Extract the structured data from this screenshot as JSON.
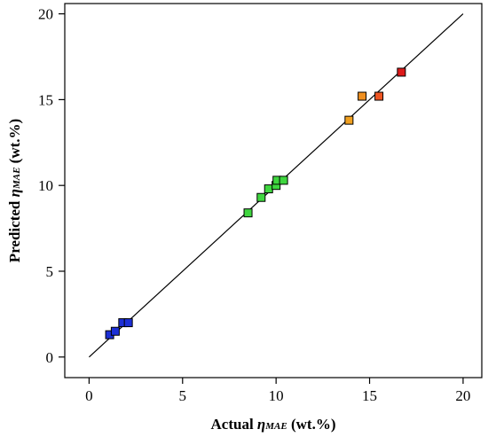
{
  "chart_data": {
    "type": "scatter",
    "title": "",
    "xlabel": {
      "prefix": "Actual ",
      "symbol": "η",
      "subscript": "MAE",
      "suffix": " (wt.%)"
    },
    "ylabel": {
      "prefix": "Predicted ",
      "symbol": "η",
      "subscript": "MAE",
      "suffix": " (wt.%)"
    },
    "xlim": [
      -1.3,
      21.0
    ],
    "ylim": [
      -1.2,
      20.6
    ],
    "xticks": [
      0,
      5,
      10,
      15,
      20
    ],
    "yticks": [
      0,
      5,
      10,
      15,
      20
    ],
    "xtick_labels": [
      "0",
      "5",
      "10",
      "15",
      "20"
    ],
    "ytick_labels": [
      "0",
      "5",
      "10",
      "15",
      "20"
    ],
    "grid": false,
    "legend": "none",
    "reference_line": {
      "type": "y=x",
      "from": [
        0,
        0
      ],
      "to": [
        20,
        20
      ]
    },
    "points": [
      {
        "x": 1.1,
        "y": 1.3,
        "color": "#1c2fd6"
      },
      {
        "x": 1.4,
        "y": 1.5,
        "color": "#1c2fd6"
      },
      {
        "x": 1.8,
        "y": 2.0,
        "color": "#1c2fd6"
      },
      {
        "x": 2.1,
        "y": 2.0,
        "color": "#1c2fd6"
      },
      {
        "x": 8.5,
        "y": 8.4,
        "color": "#3fd63f"
      },
      {
        "x": 9.2,
        "y": 9.3,
        "color": "#3fd63f"
      },
      {
        "x": 9.6,
        "y": 9.8,
        "color": "#3fd63f"
      },
      {
        "x": 10.0,
        "y": 10.0,
        "color": "#3fd63f"
      },
      {
        "x": 10.05,
        "y": 10.3,
        "color": "#3fd63f"
      },
      {
        "x": 10.4,
        "y": 10.3,
        "color": "#3fd63f"
      },
      {
        "x": 13.9,
        "y": 13.8,
        "color": "#f0a020"
      },
      {
        "x": 14.6,
        "y": 15.2,
        "color": "#f09020"
      },
      {
        "x": 15.5,
        "y": 15.2,
        "color": "#ee5522"
      },
      {
        "x": 16.7,
        "y": 16.6,
        "color": "#dd1a1a"
      }
    ]
  }
}
